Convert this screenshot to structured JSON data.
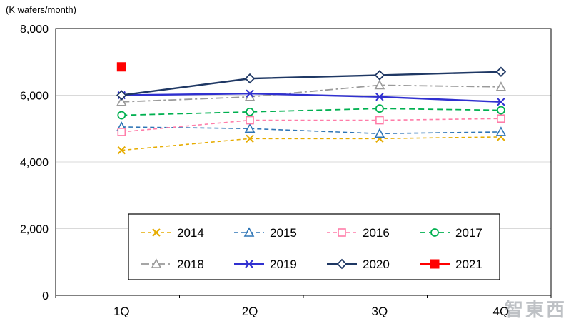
{
  "chart": {
    "unit_label": "(K wafers/month)",
    "watermark": "智東西"
  },
  "chart_data": {
    "type": "line",
    "title": "",
    "categories": [
      "1Q",
      "2Q",
      "3Q",
      "4Q"
    ],
    "ylim": [
      0,
      8000
    ],
    "yticks": [
      0,
      2000,
      4000,
      6000,
      8000
    ],
    "ytick_labels": [
      "0",
      "2,000",
      "4,000",
      "6,000",
      "8,000"
    ],
    "grid": "horizontal",
    "legend_position": "inside-bottom",
    "series": [
      {
        "name": "2014",
        "values": [
          4350,
          4700,
          4700,
          4750
        ],
        "color": "#E6AC00",
        "dash": "5 4",
        "width": 1.6,
        "marker": "x"
      },
      {
        "name": "2015",
        "values": [
          5050,
          5000,
          4850,
          4900
        ],
        "color": "#2E75B6",
        "dash": "6 4",
        "width": 1.6,
        "marker": "triangle"
      },
      {
        "name": "2016",
        "values": [
          4900,
          5250,
          5250,
          5300
        ],
        "color": "#FF7CA8",
        "dash": "5 4",
        "width": 1.6,
        "marker": "square"
      },
      {
        "name": "2017",
        "values": [
          5400,
          5500,
          5600,
          5550
        ],
        "color": "#00B050",
        "dash": "8 5",
        "width": 1.8,
        "marker": "circle"
      },
      {
        "name": "2018",
        "values": [
          5800,
          5950,
          6300,
          6250
        ],
        "color": "#9A9A9A",
        "dash": "11 4 3 4",
        "width": 1.8,
        "marker": "triangle"
      },
      {
        "name": "2019",
        "values": [
          6000,
          6050,
          5950,
          5800
        ],
        "color": "#3030D0",
        "dash": "",
        "width": 2.4,
        "marker": "x"
      },
      {
        "name": "2020",
        "values": [
          6000,
          6500,
          6600,
          6700
        ],
        "color": "#1F3864",
        "dash": "",
        "width": 2.4,
        "marker": "diamond"
      },
      {
        "name": "2021",
        "values": [
          6850,
          null,
          null,
          null
        ],
        "color": "#FF0000",
        "dash": "",
        "width": 2.2,
        "marker": "square-filled"
      }
    ]
  }
}
